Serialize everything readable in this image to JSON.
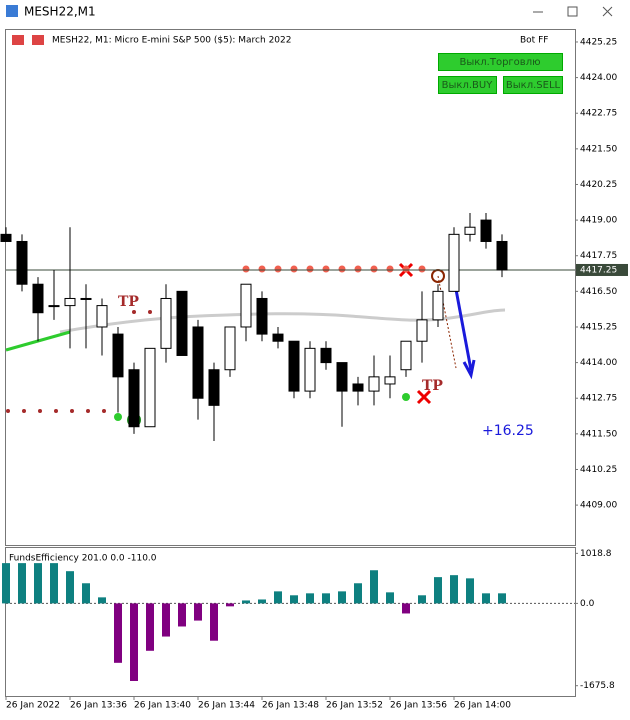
{
  "window": {
    "title": "MESH22,M1"
  },
  "ui": {
    "header": "MESH22, M1:  Micro E-mini S&P 500 ($5): March 2022",
    "bot": "Bot FF",
    "buttons": [
      "Выкл.Торговлю",
      "Выкл.BUY",
      "Выкл.SELL"
    ]
  },
  "chart_data": [
    {
      "type": "candlestick",
      "categories": [
        "26 Jan 2022",
        null,
        null,
        null,
        "26 Jan 13:36",
        null,
        null,
        null,
        "26 Jan 13:40",
        null,
        null,
        null,
        "26 Jan 13:44",
        null,
        null,
        null,
        "26 Jan 13:48",
        null,
        null,
        null,
        "26 Jan 13:52",
        null,
        null,
        null,
        "26 Jan 13:56",
        null,
        null,
        null,
        "26 Jan 14:00",
        null,
        null,
        null
      ],
      "open": [
        4418.5,
        4418.25,
        4416.75,
        4416,
        4416,
        4416.25,
        4415.25,
        4415,
        4413.75,
        4411.75,
        4414.5,
        4416.5,
        4415.25,
        4413.75,
        4413.75,
        4415.25,
        4416.25,
        4415,
        4414.75,
        4413,
        4414.5,
        4414,
        4413.25,
        4413,
        4413.25,
        4413.75,
        4414.75,
        4415.5,
        4416.5,
        4418.5,
        4419,
        4418.25
      ],
      "high": [
        4418.75,
        4418.5,
        4417,
        4417.25,
        4418.75,
        4416.75,
        4416.25,
        4415.25,
        4414,
        4414.5,
        4416.75,
        4416.5,
        4415.5,
        4414,
        4415.25,
        4416.75,
        4416.5,
        4415.25,
        4414.75,
        4414.75,
        4414.75,
        4414,
        4413.5,
        4414.25,
        4414.25,
        4414.75,
        4416.5,
        4416.75,
        4418.75,
        4419.25,
        4419.25,
        4418.5
      ],
      "low": [
        4418.25,
        4416.5,
        4414.75,
        4415.5,
        4414.5,
        4414.5,
        4414.25,
        4412.25,
        4411.5,
        4411.75,
        4414,
        4414.25,
        4412,
        4411.25,
        4413.5,
        4414.75,
        4414.75,
        4414.5,
        4412.75,
        4412.75,
        4413.75,
        4411.75,
        4412.5,
        4412.5,
        4412.75,
        4413.5,
        4414,
        4415.25,
        4416.5,
        4418.25,
        4418,
        4417
      ],
      "close": [
        4418.25,
        4416.75,
        4415.75,
        4416,
        4416.25,
        4416.25,
        4416,
        4413.5,
        4411.75,
        4414.5,
        4416.25,
        4414.25,
        4412.75,
        4412.5,
        4415.25,
        4416.75,
        4415,
        4414.75,
        4413,
        4414.5,
        4414,
        4413,
        4413,
        4413.5,
        4413.5,
        4414.75,
        4415.5,
        4416.5,
        4418.5,
        4418.75,
        4418.25,
        4417.25
      ],
      "up_color": "#ffffff",
      "down_color": "#000000",
      "ylim": [
        4407.6,
        4425.6
      ],
      "yticks": [
        4425.25,
        {
          "value": 4424,
          "label": "4424.00"
        },
        4422.75,
        {
          "value": 4421.5,
          "label": "4421.50"
        },
        4420.25,
        {
          "value": 4419,
          "label": "4419.00"
        },
        4417.75,
        {
          "value": 4416.5,
          "label": "4416.50"
        },
        4415.25,
        {
          "value": 4414,
          "label": "4414.00"
        },
        4412.75,
        {
          "value": 4411.5,
          "label": "4411.50"
        },
        4410.25,
        {
          "value": 4409,
          "label": "4409.00"
        }
      ],
      "last_price": 4417.25,
      "annotations": [
        "TP",
        "TP",
        "+16.25"
      ]
    },
    {
      "type": "bar",
      "title": "FundsEfficiency 201.0 0.0 -110.0",
      "values": [
        820,
        820,
        820,
        820,
        656,
        410,
        123,
        -1210,
        -1580,
        -965,
        -675,
        -470,
        -350,
        -760,
        -60,
        60,
        80,
        245,
        165,
        205,
        205,
        245,
        410,
        675,
        225,
        -205,
        165,
        535,
        575,
        510,
        205,
        205
      ],
      "positive_color": "#0e8080",
      "negative_color": "#800080",
      "ylim": [
        -1906,
        1128
      ],
      "yticks": [
        1018.8,
        {
          "value": 0,
          "label": "0.0"
        },
        -1675.8
      ]
    }
  ]
}
